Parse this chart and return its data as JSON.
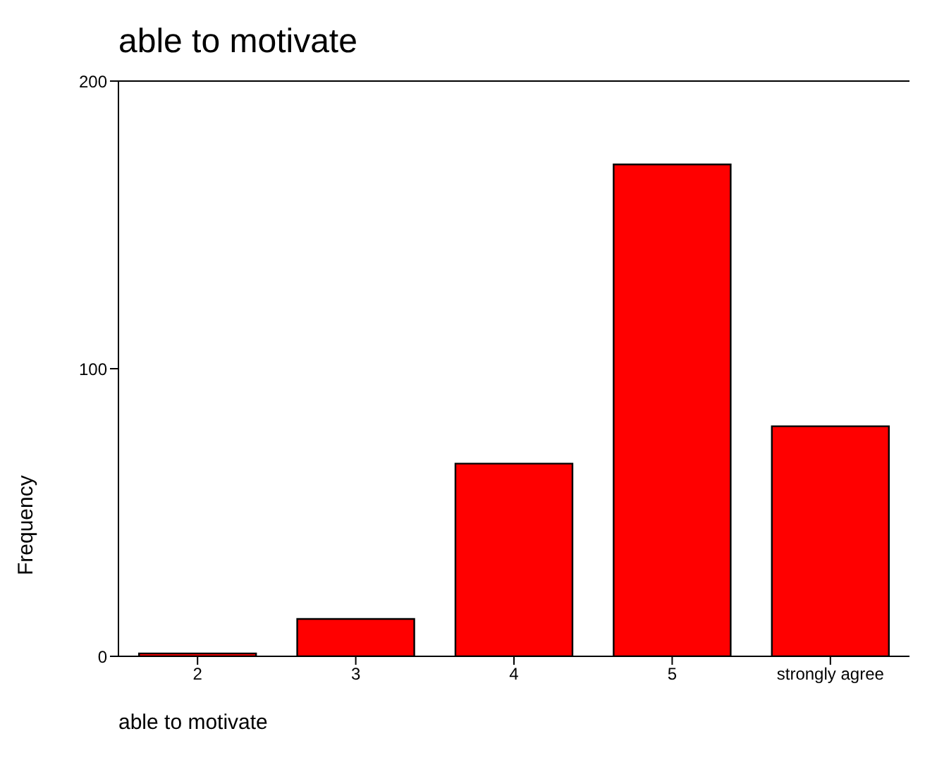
{
  "chart_data": {
    "type": "bar",
    "title": "able to motivate",
    "xlabel": "able to motivate",
    "ylabel": "Frequency",
    "categories": [
      "2",
      "3",
      "4",
      "5",
      "strongly agree"
    ],
    "values": [
      1,
      13,
      67,
      171,
      80
    ],
    "color": "#ff0000",
    "ylim": [
      0,
      200
    ],
    "yticks": [
      0,
      100,
      200
    ]
  }
}
